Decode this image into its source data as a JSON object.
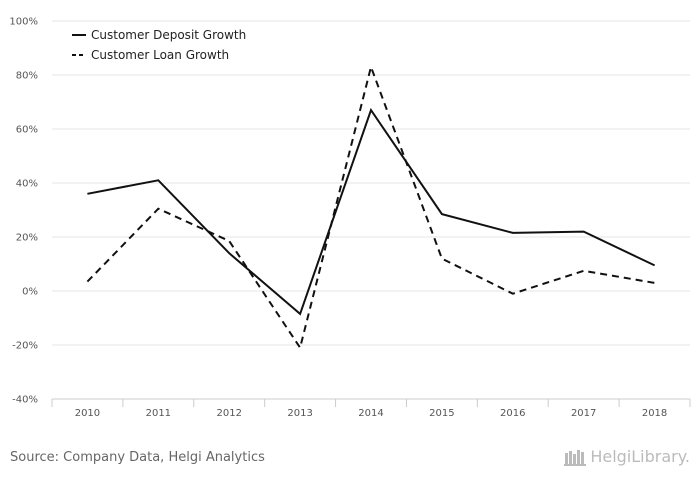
{
  "chart_data": {
    "type": "line",
    "categories": [
      "2010",
      "2011",
      "2012",
      "2013",
      "2014",
      "2015",
      "2016",
      "2017",
      "2018"
    ],
    "series": [
      {
        "name": "Customer Deposit Growth",
        "values": [
          36,
          41,
          14,
          -8.5,
          67,
          28.5,
          21.5,
          22,
          9.5
        ],
        "style": "solid",
        "color": "#111111"
      },
      {
        "name": "Customer Loan Growth",
        "values": [
          3.5,
          30.5,
          18.5,
          -21,
          83,
          12,
          -1,
          7.5,
          3
        ],
        "style": "dashed",
        "color": "#111111"
      }
    ],
    "ylim": [
      -40,
      100
    ],
    "yticks": [
      -40,
      -20,
      0,
      20,
      40,
      60,
      80,
      100
    ],
    "ytick_labels": [
      "-40%",
      "-20%",
      "0%",
      "20%",
      "40%",
      "60%",
      "80%",
      "100%"
    ],
    "grid": true,
    "legend_position": "top-left",
    "title": "",
    "xlabel": "",
    "ylabel": ""
  },
  "footer": {
    "source": "Source: Company Data, Helgi Analytics",
    "brand": "HelgiLibrary."
  },
  "colors": {
    "grid": "#e6e6e6",
    "axis": "#cccccc",
    "line": "#111111",
    "footer_text": "#666666",
    "brand_text": "#bbbbbb"
  },
  "icons": {
    "brand": "library-books-icon"
  }
}
